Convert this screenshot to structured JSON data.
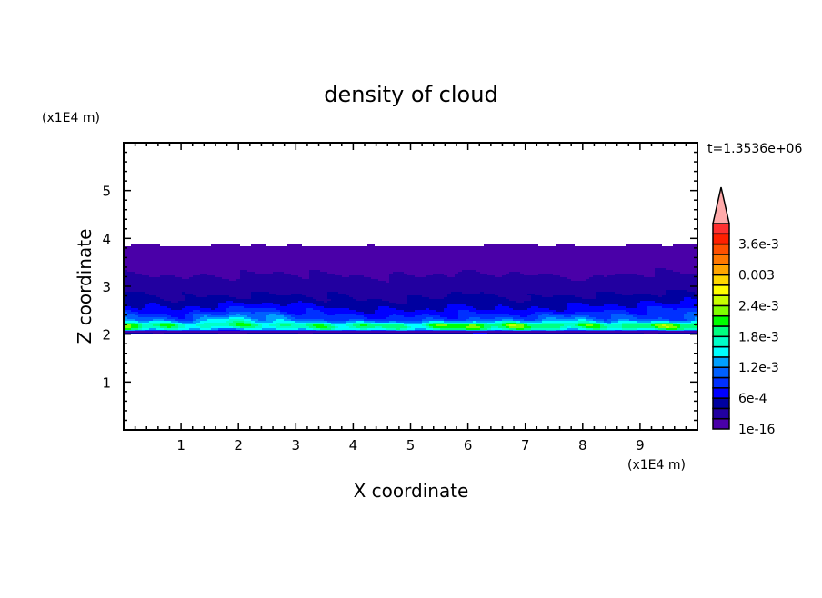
{
  "chart_data": {
    "type": "heatmap",
    "title": "density of cloud",
    "xlabel": "X coordinate",
    "ylabel": "Z coordinate",
    "x_unit": "(x1E4 m)",
    "y_unit": "(x1E4 m)",
    "time_label": "t=1.3536e+06",
    "xlim": [
      0,
      10
    ],
    "ylim": [
      0,
      6
    ],
    "x_ticks": [
      "1",
      "2",
      "3",
      "4",
      "5",
      "6",
      "7",
      "8",
      "9"
    ],
    "y_ticks": [
      "1",
      "2",
      "3",
      "4",
      "5"
    ],
    "x_tick_values": [
      1,
      2,
      3,
      4,
      5,
      6,
      7,
      8,
      9
    ],
    "y_tick_values": [
      1,
      2,
      3,
      4,
      5
    ],
    "grid": false,
    "legend": "right colorbar",
    "levels": [
      1e-16,
      0.0002,
      0.0004,
      0.0006,
      0.0008,
      0.001,
      0.0012,
      0.0014,
      0.0016,
      0.0018,
      0.002,
      0.0022,
      0.0024,
      0.0026,
      0.0028,
      0.003,
      0.0032,
      0.0034,
      0.0036,
      0.0038,
      0.004
    ],
    "colors": [
      "#4a00a8",
      "#2200a0",
      "#0000a0",
      "#0000ff",
      "#0030ff",
      "#0060ff",
      "#00a0ff",
      "#00ffff",
      "#00ffc8",
      "#00ff80",
      "#00ff00",
      "#80ff00",
      "#c8ff00",
      "#ffff00",
      "#ffd700",
      "#ffa500",
      "#ff7800",
      "#ff5000",
      "#ff2000",
      "#ff3030"
    ],
    "extend_color": "#ffaaaa",
    "colorbar_labels": [
      {
        "text": "1e-16",
        "value": 1e-16
      },
      {
        "text": "6e-4",
        "value": 0.0006
      },
      {
        "text": "1.2e-3",
        "value": 0.0012
      },
      {
        "text": "1.8e-3",
        "value": 0.0018
      },
      {
        "text": "2.4e-3",
        "value": 0.0024
      },
      {
        "text": "0.003",
        "value": 0.003
      },
      {
        "text": "3.6e-3",
        "value": 0.0036
      }
    ],
    "grid_x": [
      0,
      1,
      2,
      3,
      4,
      5,
      6,
      7,
      8,
      9,
      10
    ],
    "grid_z": [
      2.0,
      2.06,
      2.12,
      2.18,
      2.3,
      2.5,
      2.7,
      3.0,
      3.3,
      3.6,
      3.8,
      3.9
    ],
    "values": [
      [
        0,
        0,
        0,
        0,
        0,
        0,
        0,
        0,
        0,
        0,
        0
      ],
      [
        0.0009,
        0.0008,
        0.0007,
        0.0008,
        0.0009,
        0.0009,
        0.001,
        0.001,
        0.0009,
        0.0008,
        0.001
      ],
      [
        0.0021,
        0.0016,
        0.0014,
        0.0017,
        0.0018,
        0.0017,
        0.0021,
        0.002,
        0.0017,
        0.0019,
        0.0021
      ],
      [
        0.0023,
        0.0017,
        0.0019,
        0.0018,
        0.0019,
        0.0018,
        0.0022,
        0.0021,
        0.0019,
        0.002,
        0.0023
      ],
      [
        0.0012,
        0.001,
        0.0016,
        0.0011,
        0.0009,
        0.0009,
        0.001,
        0.0011,
        0.0013,
        0.001,
        0.0011
      ],
      [
        0.0008,
        0.0006,
        0.0009,
        0.0008,
        0.0006,
        0.0006,
        0.0007,
        0.0006,
        0.0007,
        0.0008,
        0.0009
      ],
      [
        0.0005,
        0.0004,
        0.0005,
        0.0005,
        0.0004,
        0.0004,
        0.0005,
        0.0004,
        0.0005,
        0.0005,
        0.0006
      ],
      [
        0.00035,
        0.0003,
        0.00025,
        0.0003,
        0.0003,
        0.00025,
        0.0003,
        0.0003,
        0.00025,
        0.0003,
        0.0003
      ],
      [
        0.0002,
        0.00015,
        0.00018,
        0.0002,
        0.00015,
        0.00018,
        0.0002,
        0.00018,
        0.00015,
        0.0002,
        0.0002
      ],
      [
        0.0001,
        8e-05,
        0.0001,
        0.0001,
        0.00012,
        0.0001,
        0.0001,
        8e-05,
        0.0001,
        0.0001,
        0.0001
      ],
      [
        5e-05,
        4e-05,
        5e-05,
        4e-05,
        4e-05,
        4e-05,
        4e-05,
        5e-05,
        4e-05,
        5e-05,
        5e-05
      ],
      [
        0,
        0,
        0,
        0,
        0,
        0,
        0,
        0,
        0,
        0,
        0
      ]
    ]
  }
}
